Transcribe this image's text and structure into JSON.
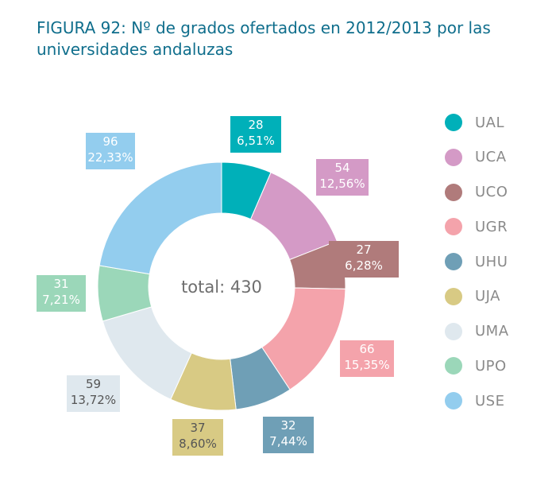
{
  "chart_data": {
    "type": "pie",
    "title": "FIGURA 92: Nº de grados ofertados en 2012/2013 por las universidades andaluzas",
    "center_label": "total: 430",
    "legend_position": "right",
    "series": [
      {
        "name": "UAL",
        "value": 28,
        "percent": "6,51%",
        "color": "#00b0b9",
        "text_color": "light"
      },
      {
        "name": "UCA",
        "value": 54,
        "percent": "12,56%",
        "color": "#d49ac6",
        "text_color": "light"
      },
      {
        "name": "UCO",
        "value": 27,
        "percent": "6,28%",
        "color": "#b07b7b",
        "text_color": "light"
      },
      {
        "name": "UGR",
        "value": 66,
        "percent": "15,35%",
        "color": "#f4a3ab",
        "text_color": "light"
      },
      {
        "name": "UHU",
        "value": 32,
        "percent": "7,44%",
        "color": "#6f9fb6",
        "text_color": "light"
      },
      {
        "name": "UJA",
        "value": 37,
        "percent": "8,60%",
        "color": "#d8ca84",
        "text_color": "dark"
      },
      {
        "name": "UMA",
        "value": 59,
        "percent": "13,72%",
        "color": "#dfe8ee",
        "text_color": "dark"
      },
      {
        "name": "UPO",
        "value": 31,
        "percent": "7,21%",
        "color": "#9bd7b9",
        "text_color": "light"
      },
      {
        "name": "USE",
        "value": 96,
        "percent": "22,33%",
        "color": "#93cdee",
        "text_color": "light"
      }
    ]
  }
}
